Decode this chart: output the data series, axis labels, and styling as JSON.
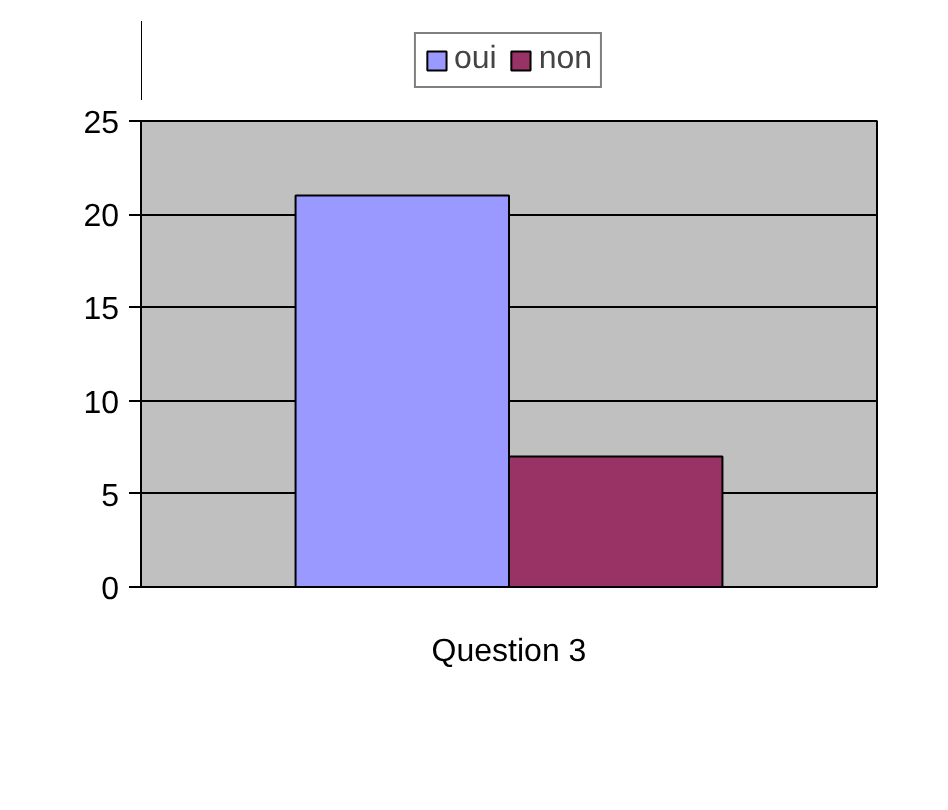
{
  "chart_data": {
    "type": "bar",
    "categories": [
      "Question 3"
    ],
    "series": [
      {
        "name": "oui",
        "color": "#9999ff",
        "values": [
          21
        ]
      },
      {
        "name": "non",
        "color": "#993366",
        "values": [
          7
        ]
      }
    ],
    "ylim": [
      0,
      25
    ],
    "yticks": [
      0,
      5,
      10,
      15,
      20,
      25
    ],
    "grid": "y",
    "legend": "top"
  }
}
